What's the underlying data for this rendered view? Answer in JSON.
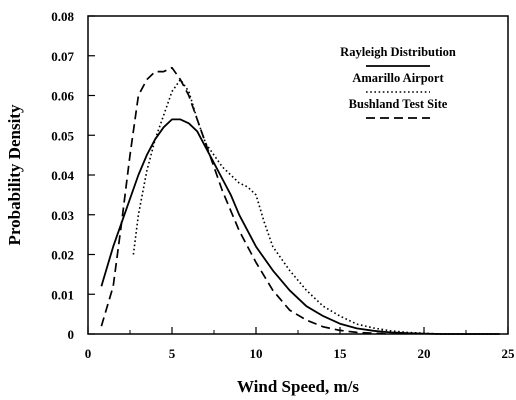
{
  "chart_data": {
    "type": "line",
    "xlabel": "Wind Speed, m/s",
    "ylabel": "Probability Density",
    "xlim": [
      0,
      25
    ],
    "ylim": [
      0,
      0.08
    ],
    "x_ticks": [
      0,
      5,
      10,
      15,
      20,
      25
    ],
    "x_tick_labels": [
      "0",
      "5",
      "10",
      "15",
      "20",
      "25"
    ],
    "y_ticks": [
      0,
      0.01,
      0.02,
      0.03,
      0.04,
      0.05,
      0.06,
      0.07,
      0.08
    ],
    "y_tick_labels": [
      "0",
      "0.01",
      "0.02",
      "0.03",
      "0.04",
      "0.05",
      "0.06",
      "0.07",
      "0.08"
    ],
    "grid": false,
    "legend_position": "top-right",
    "series": [
      {
        "name": "Rayleigh Distribution",
        "style": "solid",
        "points": [
          [
            0.8,
            0.012
          ],
          [
            1.5,
            0.022
          ],
          [
            2,
            0.028
          ],
          [
            2.5,
            0.034
          ],
          [
            3,
            0.04
          ],
          [
            3.5,
            0.045
          ],
          [
            4,
            0.049
          ],
          [
            4.5,
            0.052
          ],
          [
            5,
            0.054
          ],
          [
            5.5,
            0.054
          ],
          [
            6,
            0.053
          ],
          [
            6.5,
            0.051
          ],
          [
            7,
            0.047
          ],
          [
            7.5,
            0.043
          ],
          [
            8,
            0.039
          ],
          [
            8.5,
            0.035
          ],
          [
            9,
            0.03
          ],
          [
            9.5,
            0.026
          ],
          [
            10,
            0.022
          ],
          [
            11,
            0.016
          ],
          [
            12,
            0.011
          ],
          [
            13,
            0.007
          ],
          [
            14,
            0.0045
          ],
          [
            15,
            0.0026
          ],
          [
            16,
            0.0014
          ],
          [
            17,
            0.0008
          ],
          [
            18,
            0.0004
          ],
          [
            19,
            0.0002
          ],
          [
            20,
            0.0001
          ],
          [
            21,
            0.0
          ],
          [
            23,
            0.0
          ],
          [
            24.5,
            0.0
          ]
        ]
      },
      {
        "name": "Amarillo Airport",
        "style": "dotted",
        "points": [
          [
            2.7,
            0.02
          ],
          [
            3,
            0.03
          ],
          [
            3.5,
            0.041
          ],
          [
            4,
            0.049
          ],
          [
            4.5,
            0.055
          ],
          [
            5,
            0.061
          ],
          [
            5.5,
            0.064
          ],
          [
            6,
            0.061
          ],
          [
            6.5,
            0.054
          ],
          [
            7,
            0.048
          ],
          [
            7.5,
            0.045
          ],
          [
            8,
            0.042
          ],
          [
            8.5,
            0.04
          ],
          [
            9,
            0.038
          ],
          [
            9.5,
            0.037
          ],
          [
            10,
            0.035
          ],
          [
            10.5,
            0.028
          ],
          [
            11,
            0.022
          ],
          [
            12,
            0.016
          ],
          [
            13,
            0.011
          ],
          [
            14,
            0.007
          ],
          [
            15,
            0.0045
          ],
          [
            16,
            0.0025
          ],
          [
            17,
            0.0015
          ],
          [
            18,
            0.0008
          ],
          [
            19,
            0.0004
          ],
          [
            20,
            0.0002
          ],
          [
            21,
            0.0
          ],
          [
            23,
            0.0
          ],
          [
            24.5,
            0.0
          ]
        ]
      },
      {
        "name": "Bushland Test Site",
        "style": "dashed",
        "points": [
          [
            0.8,
            0.002
          ],
          [
            1.5,
            0.012
          ],
          [
            2,
            0.028
          ],
          [
            2.5,
            0.045
          ],
          [
            3,
            0.06
          ],
          [
            3.5,
            0.064
          ],
          [
            4,
            0.066
          ],
          [
            4.5,
            0.066
          ],
          [
            5,
            0.067
          ],
          [
            5.5,
            0.064
          ],
          [
            6,
            0.06
          ],
          [
            6.5,
            0.054
          ],
          [
            7,
            0.048
          ],
          [
            7.5,
            0.042
          ],
          [
            8,
            0.036
          ],
          [
            8.5,
            0.031
          ],
          [
            9,
            0.026
          ],
          [
            9.5,
            0.022
          ],
          [
            10,
            0.018
          ],
          [
            11,
            0.011
          ],
          [
            12,
            0.006
          ],
          [
            13,
            0.0035
          ],
          [
            14,
            0.0018
          ],
          [
            15,
            0.0009
          ],
          [
            16,
            0.0004
          ],
          [
            17,
            0.0002
          ],
          [
            18,
            0.0
          ]
        ]
      }
    ]
  }
}
